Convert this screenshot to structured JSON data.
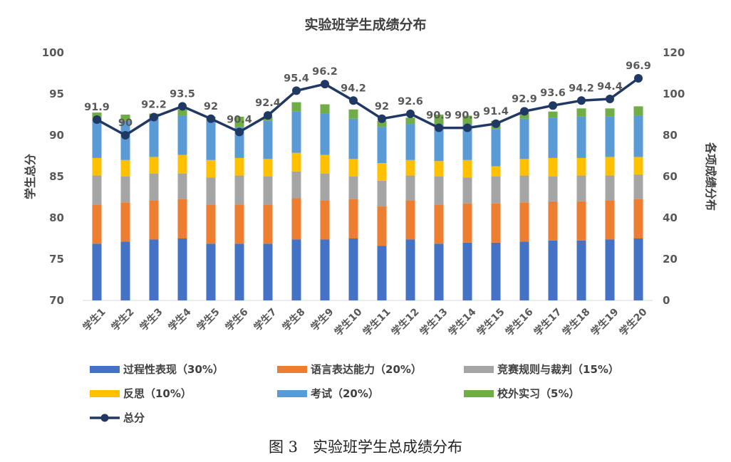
{
  "chart_data": {
    "type": "bar",
    "stacked": true,
    "title": "实验班学生成绩分布",
    "caption": "图 3　实验班学生总成绩分布",
    "categories": [
      "学生1",
      "学生2",
      "学生3",
      "学生4",
      "学生5",
      "学生6",
      "学生7",
      "学生8",
      "学生9",
      "学生10",
      "学生11",
      "学生12",
      "学生13",
      "学生14",
      "学生15",
      "学生16",
      "学生17",
      "学生18",
      "学生19",
      "学生20"
    ],
    "ylabel_left": "学生总分",
    "ylabel_right": "各项成绩分布",
    "left_axis": {
      "min": 70,
      "max": 100,
      "step": 5,
      "ticks": [
        "70",
        "75",
        "80",
        "85",
        "90",
        "95",
        "100"
      ]
    },
    "right_axis": {
      "min": 0,
      "max": 120,
      "step": 20,
      "ticks": [
        "0",
        "20",
        "40",
        "60",
        "80",
        "100",
        "120"
      ]
    },
    "series": [
      {
        "name": "过程性表现（30%）",
        "color": "#4472C4",
        "axis": "right",
        "values": [
          27.5,
          28.5,
          29.5,
          30,
          27.5,
          27.5,
          27.5,
          29.5,
          29.5,
          30,
          26.5,
          29.5,
          27.5,
          28,
          28,
          28.5,
          29,
          29,
          29.5,
          30
        ]
      },
      {
        "name": "语言表达能力（20%）",
        "color": "#ED7D31",
        "axis": "right",
        "values": [
          19,
          19,
          19,
          19,
          19,
          19,
          19,
          20,
          19,
          19,
          19,
          19,
          19,
          19,
          19,
          19,
          19,
          19,
          19,
          19
        ]
      },
      {
        "name": "竞赛规则与裁判（15%）",
        "color": "#A5A5A5",
        "axis": "right",
        "values": [
          14,
          12.5,
          13,
          12.5,
          13,
          14,
          13.5,
          13,
          13,
          11,
          12.5,
          12,
          13.5,
          12.5,
          13,
          13,
          12,
          12.5,
          12,
          12
        ]
      },
      {
        "name": "反思（10%）",
        "color": "#FFC000",
        "axis": "right",
        "values": [
          8.5,
          8,
          8,
          9,
          8.5,
          8.5,
          8.5,
          9,
          9,
          8.5,
          8.5,
          7.5,
          7.5,
          8.5,
          5,
          8,
          9,
          8.5,
          9,
          8.5
        ]
      },
      {
        "name": "考试（20%）",
        "color": "#5B9BD5",
        "axis": "right",
        "values": [
          19,
          19,
          19,
          19,
          19,
          15,
          18.5,
          20,
          20,
          19.5,
          17.5,
          17.5,
          17.5,
          17.5,
          18,
          19.5,
          19.5,
          20,
          19.5,
          20
        ]
      },
      {
        "name": "校外实习（5%）",
        "color": "#70AD47",
        "axis": "right",
        "values": [
          3,
          3,
          2,
          3,
          2,
          5,
          2,
          4.5,
          4.5,
          4.5,
          3,
          3,
          5,
          4,
          4,
          3,
          3,
          4,
          4,
          4.5
        ]
      },
      {
        "name": "总分",
        "type": "line",
        "color": "#203864",
        "axis": "left",
        "values": [
          91.9,
          90,
          92.2,
          93.5,
          92,
          90.4,
          92.4,
          95.4,
          96.2,
          94.2,
          92,
          92.6,
          90.9,
          90.9,
          91.4,
          92.9,
          93.6,
          94.2,
          94.4,
          96.9
        ],
        "labels": [
          "91.9",
          "90",
          "92.2",
          "93.5",
          "92",
          "90.4",
          "92.4",
          "95.4",
          "96.2",
          "94.2",
          "92",
          "92.6",
          "90.9",
          "90.9",
          "91.4",
          "92.9",
          "93.6",
          "94.2",
          "94.4",
          "96.9"
        ]
      }
    ],
    "gridlines": false,
    "legend_position": "bottom"
  }
}
